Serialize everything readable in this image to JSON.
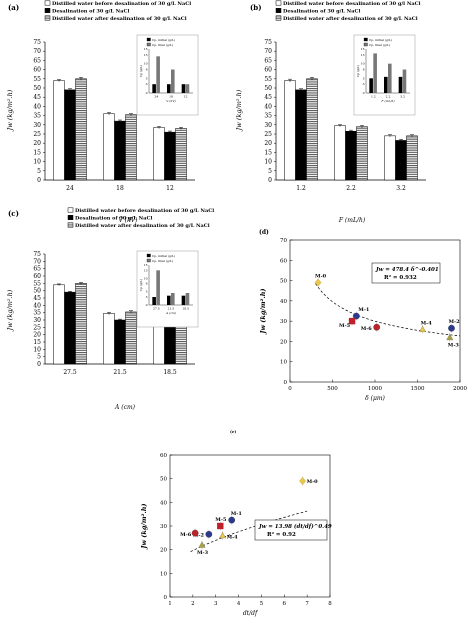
{
  "chart_data": [
    {
      "panel": "(a)",
      "type": "bar",
      "legend": [
        "Distilled water before desalination of 30 g/L NaCl",
        "Desalination of 30 g/L NaCl",
        "Distilled water after desalination of 30 g/L NaCl"
      ],
      "categories": [
        "24",
        "18",
        "12"
      ],
      "series": [
        {
          "name": "Distilled water before desalination of 30 g/L NaCl",
          "values": [
            54,
            36,
            28.5
          ],
          "errors": [
            0.6,
            0.6,
            0.6
          ]
        },
        {
          "name": "Desalination of 30 g/L NaCl",
          "values": [
            49,
            32,
            26
          ],
          "errors": [
            0.6,
            0.6,
            0.6
          ]
        },
        {
          "name": "Distilled water after desalination of 30 g/L NaCl",
          "values": [
            55,
            35.5,
            28
          ],
          "errors": [
            0.8,
            0.6,
            0.6
          ]
        }
      ],
      "xlabel": "V (kV)",
      "ylabel": "Jw (kg/m².h)",
      "ylim": [
        0,
        75
      ],
      "yticks": [
        0,
        5,
        10,
        15,
        20,
        25,
        30,
        35,
        40,
        45,
        50,
        55,
        60,
        65,
        70,
        75
      ],
      "inset": {
        "legend": [
          "Cp, initial (g/L)",
          "Cp, final (g/L)"
        ],
        "categories": [
          "24",
          "18",
          "12"
        ],
        "series": [
          {
            "name": "Cp, initial (g/L)",
            "values": [
              3,
              3,
              3
            ]
          },
          {
            "name": "Cp, final (g/L)",
            "values": [
              12.5,
              8,
              3
            ]
          }
        ],
        "ylim": [
          0,
          15
        ],
        "yticks": [
          0,
          3,
          5,
          8,
          10,
          13,
          15
        ],
        "xlabel": "V (kV)",
        "ylabel": "Cp (g/L)"
      }
    },
    {
      "panel": "(b)",
      "type": "bar",
      "legend": [
        "Distilled water before desalination of 30 g/l NaCl",
        "Desalination of 30 g/L NaCl",
        "Distilled water after desalination of 30 g/L NaCl"
      ],
      "categories": [
        "1.2",
        "2.2",
        "3.2"
      ],
      "series": [
        {
          "name": "Distilled water before desalination of 30 g/l NaCl",
          "values": [
            54,
            29.5,
            24
          ],
          "errors": [
            0.8,
            0.6,
            0.6
          ]
        },
        {
          "name": "Desalination of 30 g/L NaCl",
          "values": [
            49,
            26.5,
            21.5
          ],
          "errors": [
            0.6,
            0.6,
            0.6
          ]
        },
        {
          "name": "Distilled water after desalination of 30 g/L NaCl",
          "values": [
            55,
            29,
            24
          ],
          "errors": [
            0.8,
            0.6,
            0.6
          ]
        }
      ],
      "xlabel": "F (mL/h)",
      "ylabel": "Jw (kg/m².h)",
      "ylim": [
        0,
        75
      ],
      "yticks": [
        0,
        5,
        10,
        15,
        20,
        25,
        30,
        35,
        40,
        45,
        50,
        55,
        60,
        65,
        70,
        75
      ],
      "inset": {
        "legend": [
          "Cp, initial (g/L)",
          "Cp, final (g/L)"
        ],
        "categories": [
          "1.2",
          "2.2",
          "3.2"
        ],
        "series": [
          {
            "name": "Cp, initial (g/L)",
            "values": [
              5,
              5.5,
              5.5
            ]
          },
          {
            "name": "Cp, final (g/L)",
            "values": [
              13.5,
              10,
              8
            ]
          }
        ],
        "ylim": [
          0,
          15
        ],
        "yticks": [
          0,
          3,
          5,
          8,
          10,
          13,
          15
        ],
        "xlabel": "F (mL/h)",
        "ylabel": "Cp (g/L)"
      }
    },
    {
      "panel": "(c)",
      "type": "bar",
      "legend": [
        "Distilled water before desalination of 30 g/L NaCl",
        "Desalination of 30 g/L NaCl",
        "Distilled water after desalination of 30 g/L NaCl"
      ],
      "categories": [
        "27.5",
        "21.5",
        "18.5"
      ],
      "series": [
        {
          "name": "Distilled water before desalination of 30 g/L NaCl",
          "values": [
            54,
            34.5,
            31
          ],
          "errors": [
            0.6,
            0.8,
            0.8
          ]
        },
        {
          "name": "Desalination of 30 g/L NaCl",
          "values": [
            49,
            30,
            26.5
          ],
          "errors": [
            0.6,
            0.6,
            0.6
          ]
        },
        {
          "name": "Distilled water after desalination of 30 g/L NaCl",
          "values": [
            55,
            35.5,
            31
          ],
          "errors": [
            0.6,
            0.8,
            0.6
          ]
        }
      ],
      "xlabel": "A (cm)",
      "ylabel": "Jw (kg/m².h)",
      "ylim": [
        0,
        75
      ],
      "yticks": [
        0,
        5,
        10,
        15,
        20,
        25,
        30,
        35,
        40,
        45,
        50,
        55,
        60,
        65,
        70,
        75
      ],
      "inset": {
        "legend": [
          "Cp, initial (g/L)",
          "Cp, final (g/L)"
        ],
        "categories": [
          "27.5",
          "21.5",
          "18.5"
        ],
        "series": [
          {
            "name": "Cp, initial (g/L)",
            "values": [
              3,
              3.5,
              3.5
            ]
          },
          {
            "name": "Cp, final (g/L)",
            "values": [
              13,
              4.5,
              4.5
            ]
          }
        ],
        "ylim": [
          0,
          15
        ],
        "yticks": [
          0,
          3,
          5,
          8,
          10,
          13,
          15
        ],
        "xlabel": "A (cm)",
        "ylabel": "Cp (g/L)"
      }
    },
    {
      "panel": "(d)",
      "type": "scatter",
      "points": [
        {
          "label": "M-0",
          "x": 330,
          "y": 49,
          "color": "#e8c84a",
          "shape": "diamond"
        },
        {
          "label": "M-1",
          "x": 780,
          "y": 32.5,
          "color": "#2b3a8c",
          "shape": "circle"
        },
        {
          "label": "M-5",
          "x": 730,
          "y": 30,
          "color": "#c0202a",
          "shape": "square"
        },
        {
          "label": "M-6",
          "x": 1020,
          "y": 27,
          "color": "#c0202a",
          "shape": "circle"
        },
        {
          "label": "M-4",
          "x": 1560,
          "y": 26,
          "color": "#e8c84a",
          "shape": "triangle"
        },
        {
          "label": "M-2",
          "x": 1900,
          "y": 26.5,
          "color": "#2b3a8c",
          "shape": "circle"
        },
        {
          "label": "M-3",
          "x": 1880,
          "y": 22,
          "color": "#aaa23a",
          "shape": "triangle"
        }
      ],
      "fit": {
        "equation": "Jw = 478.4 δ^-0.401",
        "r2": "R² = 0.932",
        "a": 478.4,
        "b": -0.401
      },
      "xlabel": "δ (μm)",
      "ylabel": "Jw (kg/m².h)",
      "xlim": [
        0,
        2000
      ],
      "ylim": [
        0,
        70
      ],
      "xticks": [
        0,
        500,
        1000,
        1500,
        2000
      ],
      "yticks": [
        0,
        10,
        20,
        30,
        40,
        50,
        60,
        70
      ]
    },
    {
      "panel": "(e)",
      "type": "scatter",
      "points": [
        {
          "label": "M-0",
          "x": 6.8,
          "y": 49,
          "color": "#e8c84a",
          "shape": "diamond"
        },
        {
          "label": "M-1",
          "x": 3.7,
          "y": 32.5,
          "color": "#2b3a8c",
          "shape": "circle"
        },
        {
          "label": "M-5",
          "x": 3.2,
          "y": 30,
          "color": "#c0202a",
          "shape": "square"
        },
        {
          "label": "M-2",
          "x": 2.7,
          "y": 26.5,
          "color": "#2b3a8c",
          "shape": "circle"
        },
        {
          "label": "M-4",
          "x": 3.3,
          "y": 26,
          "color": "#e8c84a",
          "shape": "triangle"
        },
        {
          "label": "M-6",
          "x": 2.1,
          "y": 27,
          "color": "#c0202a",
          "shape": "circle"
        },
        {
          "label": "M-3",
          "x": 2.4,
          "y": 22,
          "color": "#aaa23a",
          "shape": "triangle"
        }
      ],
      "fit": {
        "equation": "Jw = 13.98 (dt/df)^0.49",
        "r2": "R² = 0.92",
        "a": 13.98,
        "b": 0.49
      },
      "xlabel": "dt/df",
      "ylabel": "Jw (kg/m².h)",
      "xlim": [
        1,
        8
      ],
      "ylim": [
        0,
        60
      ],
      "xticks": [
        1,
        2,
        3,
        4,
        5,
        6,
        7,
        8
      ],
      "yticks": [
        0,
        10,
        20,
        30,
        40,
        50,
        60
      ]
    }
  ]
}
